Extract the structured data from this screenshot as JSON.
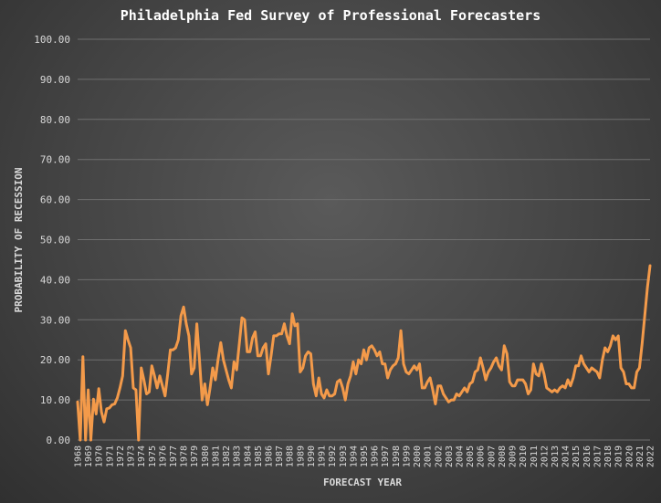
{
  "chart_data": {
    "type": "line",
    "title": "Philadelphia Fed Survey of Professional Forecasters",
    "xlabel": "FORECAST YEAR",
    "ylabel": "PROBABILITY OF RECESSION",
    "ylim": [
      0,
      100
    ],
    "y_ticks": [
      "0.00",
      "10.00",
      "20.00",
      "30.00",
      "40.00",
      "50.00",
      "60.00",
      "70.00",
      "80.00",
      "90.00",
      "100.00"
    ],
    "x_ticks": [
      "1968",
      "1969",
      "1970",
      "1971",
      "1972",
      "1973",
      "1974",
      "1975",
      "1976",
      "1977",
      "1978",
      "1979",
      "1980",
      "1981",
      "1982",
      "1983",
      "1984",
      "1985",
      "1986",
      "1987",
      "1988",
      "1989",
      "1990",
      "1991",
      "1992",
      "1993",
      "1994",
      "1995",
      "1996",
      "1997",
      "1998",
      "1999",
      "2000",
      "2001",
      "2002",
      "2003",
      "2004",
      "2005",
      "2006",
      "2007",
      "2008",
      "2009",
      "2010",
      "2011",
      "2012",
      "2013",
      "2014",
      "2015",
      "2016",
      "2017",
      "2018",
      "2019",
      "2020",
      "2021",
      "2022"
    ],
    "grid": true,
    "legend": "none",
    "line_color": "#f39a4a",
    "series": [
      {
        "values": [
          {
            "x": 1968.0,
            "y": 9.5
          },
          {
            "x": 1968.25,
            "y": 0
          },
          {
            "x": 1968.5,
            "y": 20.8
          },
          {
            "x": 1968.75,
            "y": 0
          },
          {
            "x": 1969.0,
            "y": 12.5
          },
          {
            "x": 1969.25,
            "y": 0
          },
          {
            "x": 1969.5,
            "y": 10.2
          },
          {
            "x": 1969.75,
            "y": 6.5
          },
          {
            "x": 1970.0,
            "y": 12.8
          },
          {
            "x": 1970.25,
            "y": 7.0
          },
          {
            "x": 1970.5,
            "y": 4.5
          },
          {
            "x": 1970.75,
            "y": 7.8
          },
          {
            "x": 1971.0,
            "y": 8.0
          },
          {
            "x": 1971.25,
            "y": 8.8
          },
          {
            "x": 1971.5,
            "y": 9.0
          },
          {
            "x": 1971.75,
            "y": 10.5
          },
          {
            "x": 1972.0,
            "y": 13.0
          },
          {
            "x": 1972.25,
            "y": 16.0
          },
          {
            "x": 1972.5,
            "y": 27.3
          },
          {
            "x": 1972.75,
            "y": 25.0
          },
          {
            "x": 1973.0,
            "y": 23.0
          },
          {
            "x": 1973.25,
            "y": 13.0
          },
          {
            "x": 1973.5,
            "y": 12.5
          },
          {
            "x": 1973.75,
            "y": 0
          },
          {
            "x": 1974.0,
            "y": 18.0
          },
          {
            "x": 1974.25,
            "y": 15.0
          },
          {
            "x": 1974.5,
            "y": 11.5
          },
          {
            "x": 1974.75,
            "y": 12.0
          },
          {
            "x": 1975.0,
            "y": 18.5
          },
          {
            "x": 1975.25,
            "y": 16.0
          },
          {
            "x": 1975.5,
            "y": 13.0
          },
          {
            "x": 1975.75,
            "y": 16.0
          },
          {
            "x": 1976.0,
            "y": 13.5
          },
          {
            "x": 1976.25,
            "y": 11.0
          },
          {
            "x": 1976.5,
            "y": 16.5
          },
          {
            "x": 1976.75,
            "y": 22.5
          },
          {
            "x": 1977.0,
            "y": 22.5
          },
          {
            "x": 1977.25,
            "y": 23.0
          },
          {
            "x": 1977.5,
            "y": 25.0
          },
          {
            "x": 1977.75,
            "y": 31.0
          },
          {
            "x": 1978.0,
            "y": 33.2
          },
          {
            "x": 1978.25,
            "y": 29.0
          },
          {
            "x": 1978.5,
            "y": 26.0
          },
          {
            "x": 1978.75,
            "y": 16.5
          },
          {
            "x": 1979.0,
            "y": 18.0
          },
          {
            "x": 1979.25,
            "y": 29.0
          },
          {
            "x": 1979.5,
            "y": 20.0
          },
          {
            "x": 1979.75,
            "y": 10.0
          },
          {
            "x": 1980.0,
            "y": 14.0
          },
          {
            "x": 1980.25,
            "y": 8.8
          },
          {
            "x": 1980.5,
            "y": 13.0
          },
          {
            "x": 1980.75,
            "y": 18.0
          },
          {
            "x": 1981.0,
            "y": 15.0
          },
          {
            "x": 1981.25,
            "y": 20.0
          },
          {
            "x": 1981.5,
            "y": 24.3
          },
          {
            "x": 1981.75,
            "y": 20.0
          },
          {
            "x": 1982.0,
            "y": 17.5
          },
          {
            "x": 1982.25,
            "y": 15.0
          },
          {
            "x": 1982.5,
            "y": 13.0
          },
          {
            "x": 1982.75,
            "y": 19.5
          },
          {
            "x": 1983.0,
            "y": 17.5
          },
          {
            "x": 1983.25,
            "y": 24.0
          },
          {
            "x": 1983.5,
            "y": 30.5
          },
          {
            "x": 1983.75,
            "y": 30.0
          },
          {
            "x": 1984.0,
            "y": 22.0
          },
          {
            "x": 1984.25,
            "y": 22.0
          },
          {
            "x": 1984.5,
            "y": 25.5
          },
          {
            "x": 1984.75,
            "y": 27.0
          },
          {
            "x": 1985.0,
            "y": 21.0
          },
          {
            "x": 1985.25,
            "y": 21.0
          },
          {
            "x": 1985.5,
            "y": 23.0
          },
          {
            "x": 1985.75,
            "y": 24.0
          },
          {
            "x": 1986.0,
            "y": 16.5
          },
          {
            "x": 1986.25,
            "y": 21.0
          },
          {
            "x": 1986.5,
            "y": 26.0
          },
          {
            "x": 1986.75,
            "y": 26.0
          },
          {
            "x": 1987.0,
            "y": 26.5
          },
          {
            "x": 1987.25,
            "y": 26.5
          },
          {
            "x": 1987.5,
            "y": 29.0
          },
          {
            "x": 1987.75,
            "y": 26.0
          },
          {
            "x": 1988.0,
            "y": 24.0
          },
          {
            "x": 1988.25,
            "y": 31.5
          },
          {
            "x": 1988.5,
            "y": 28.5
          },
          {
            "x": 1988.75,
            "y": 29.0
          },
          {
            "x": 1989.0,
            "y": 17.0
          },
          {
            "x": 1989.25,
            "y": 18.0
          },
          {
            "x": 1989.5,
            "y": 21.0
          },
          {
            "x": 1989.75,
            "y": 22.0
          },
          {
            "x": 1990.0,
            "y": 21.5
          },
          {
            "x": 1990.25,
            "y": 14.0
          },
          {
            "x": 1990.5,
            "y": 11.0
          },
          {
            "x": 1990.75,
            "y": 15.5
          },
          {
            "x": 1991.0,
            "y": 11.5
          },
          {
            "x": 1991.25,
            "y": 10.5
          },
          {
            "x": 1991.5,
            "y": 12.5
          },
          {
            "x": 1991.75,
            "y": 11.0
          },
          {
            "x": 1992.0,
            "y": 11.0
          },
          {
            "x": 1992.25,
            "y": 11.5
          },
          {
            "x": 1992.5,
            "y": 14.5
          },
          {
            "x": 1992.75,
            "y": 15.0
          },
          {
            "x": 1993.0,
            "y": 13.0
          },
          {
            "x": 1993.25,
            "y": 10.0
          },
          {
            "x": 1993.5,
            "y": 14.0
          },
          {
            "x": 1993.75,
            "y": 16.0
          },
          {
            "x": 1994.0,
            "y": 19.5
          },
          {
            "x": 1994.25,
            "y": 16.5
          },
          {
            "x": 1994.5,
            "y": 20.0
          },
          {
            "x": 1994.75,
            "y": 19.0
          },
          {
            "x": 1995.0,
            "y": 22.5
          },
          {
            "x": 1995.25,
            "y": 20.0
          },
          {
            "x": 1995.5,
            "y": 23.0
          },
          {
            "x": 1995.75,
            "y": 23.5
          },
          {
            "x": 1996.0,
            "y": 22.5
          },
          {
            "x": 1996.25,
            "y": 21.0
          },
          {
            "x": 1996.5,
            "y": 22.0
          },
          {
            "x": 1996.75,
            "y": 19.0
          },
          {
            "x": 1997.0,
            "y": 19.0
          },
          {
            "x": 1997.25,
            "y": 15.5
          },
          {
            "x": 1997.5,
            "y": 17.5
          },
          {
            "x": 1997.75,
            "y": 18.5
          },
          {
            "x": 1998.0,
            "y": 19.0
          },
          {
            "x": 1998.25,
            "y": 20.5
          },
          {
            "x": 1998.5,
            "y": 27.3
          },
          {
            "x": 1998.75,
            "y": 19.0
          },
          {
            "x": 1999.0,
            "y": 17.0
          },
          {
            "x": 1999.25,
            "y": 16.5
          },
          {
            "x": 1999.5,
            "y": 17.5
          },
          {
            "x": 1999.75,
            "y": 18.5
          },
          {
            "x": 2000.0,
            "y": 17.5
          },
          {
            "x": 2000.25,
            "y": 19.0
          },
          {
            "x": 2000.5,
            "y": 13.0
          },
          {
            "x": 2000.75,
            "y": 13.0
          },
          {
            "x": 2001.0,
            "y": 14.5
          },
          {
            "x": 2001.25,
            "y": 15.5
          },
          {
            "x": 2001.5,
            "y": 12.5
          },
          {
            "x": 2001.75,
            "y": 9.0
          },
          {
            "x": 2002.0,
            "y": 13.5
          },
          {
            "x": 2002.25,
            "y": 13.5
          },
          {
            "x": 2002.5,
            "y": 11.5
          },
          {
            "x": 2002.75,
            "y": 10.5
          },
          {
            "x": 2003.0,
            "y": 9.5
          },
          {
            "x": 2003.25,
            "y": 10.0
          },
          {
            "x": 2003.5,
            "y": 10.0
          },
          {
            "x": 2003.75,
            "y": 11.5
          },
          {
            "x": 2004.0,
            "y": 11.0
          },
          {
            "x": 2004.25,
            "y": 12.0
          },
          {
            "x": 2004.5,
            "y": 13.0
          },
          {
            "x": 2004.75,
            "y": 12.0
          },
          {
            "x": 2005.0,
            "y": 14.0
          },
          {
            "x": 2005.25,
            "y": 14.5
          },
          {
            "x": 2005.5,
            "y": 17.0
          },
          {
            "x": 2005.75,
            "y": 17.5
          },
          {
            "x": 2006.0,
            "y": 20.5
          },
          {
            "x": 2006.25,
            "y": 18.0
          },
          {
            "x": 2006.5,
            "y": 15.0
          },
          {
            "x": 2006.75,
            "y": 17.0
          },
          {
            "x": 2007.0,
            "y": 18.0
          },
          {
            "x": 2007.25,
            "y": 19.5
          },
          {
            "x": 2007.5,
            "y": 20.5
          },
          {
            "x": 2007.75,
            "y": 18.5
          },
          {
            "x": 2008.0,
            "y": 17.5
          },
          {
            "x": 2008.25,
            "y": 23.5
          },
          {
            "x": 2008.5,
            "y": 21.5
          },
          {
            "x": 2008.75,
            "y": 14.5
          },
          {
            "x": 2009.0,
            "y": 13.5
          },
          {
            "x": 2009.25,
            "y": 13.5
          },
          {
            "x": 2009.5,
            "y": 15.0
          },
          {
            "x": 2009.75,
            "y": 15.0
          },
          {
            "x": 2010.0,
            "y": 15.0
          },
          {
            "x": 2010.25,
            "y": 14.0
          },
          {
            "x": 2010.5,
            "y": 11.5
          },
          {
            "x": 2010.75,
            "y": 12.5
          },
          {
            "x": 2011.0,
            "y": 19.0
          },
          {
            "x": 2011.25,
            "y": 16.5
          },
          {
            "x": 2011.5,
            "y": 16.0
          },
          {
            "x": 2011.75,
            "y": 19.0
          },
          {
            "x": 2012.0,
            "y": 16.5
          },
          {
            "x": 2012.25,
            "y": 13.0
          },
          {
            "x": 2012.5,
            "y": 12.5
          },
          {
            "x": 2012.75,
            "y": 12.0
          },
          {
            "x": 2013.0,
            "y": 12.5
          },
          {
            "x": 2013.25,
            "y": 12.0
          },
          {
            "x": 2013.5,
            "y": 13.0
          },
          {
            "x": 2013.75,
            "y": 13.5
          },
          {
            "x": 2014.0,
            "y": 13.0
          },
          {
            "x": 2014.25,
            "y": 15.0
          },
          {
            "x": 2014.5,
            "y": 13.5
          },
          {
            "x": 2014.75,
            "y": 15.5
          },
          {
            "x": 2015.0,
            "y": 18.5
          },
          {
            "x": 2015.25,
            "y": 18.5
          },
          {
            "x": 2015.5,
            "y": 21.0
          },
          {
            "x": 2015.75,
            "y": 19.0
          },
          {
            "x": 2016.0,
            "y": 18.0
          },
          {
            "x": 2016.25,
            "y": 17.0
          },
          {
            "x": 2016.5,
            "y": 18.0
          },
          {
            "x": 2016.75,
            "y": 17.5
          },
          {
            "x": 2017.0,
            "y": 17.0
          },
          {
            "x": 2017.25,
            "y": 15.5
          },
          {
            "x": 2017.5,
            "y": 20.0
          },
          {
            "x": 2017.75,
            "y": 23.0
          },
          {
            "x": 2018.0,
            "y": 22.0
          },
          {
            "x": 2018.25,
            "y": 23.5
          },
          {
            "x": 2018.5,
            "y": 26.0
          },
          {
            "x": 2018.75,
            "y": 25.0
          },
          {
            "x": 2019.0,
            "y": 26.0
          },
          {
            "x": 2019.25,
            "y": 18.0
          },
          {
            "x": 2019.5,
            "y": 17.0
          },
          {
            "x": 2019.75,
            "y": 14.0
          },
          {
            "x": 2020.0,
            "y": 14.0
          },
          {
            "x": 2020.25,
            "y": 13.0
          },
          {
            "x": 2020.5,
            "y": 13.0
          },
          {
            "x": 2020.75,
            "y": 17.0
          },
          {
            "x": 2021.0,
            "y": 18.0
          },
          {
            "x": 2021.25,
            "y": 24.0
          },
          {
            "x": 2021.5,
            "y": 31.0
          },
          {
            "x": 2021.75,
            "y": 38.0
          },
          {
            "x": 2022.0,
            "y": 43.5
          }
        ]
      }
    ]
  }
}
